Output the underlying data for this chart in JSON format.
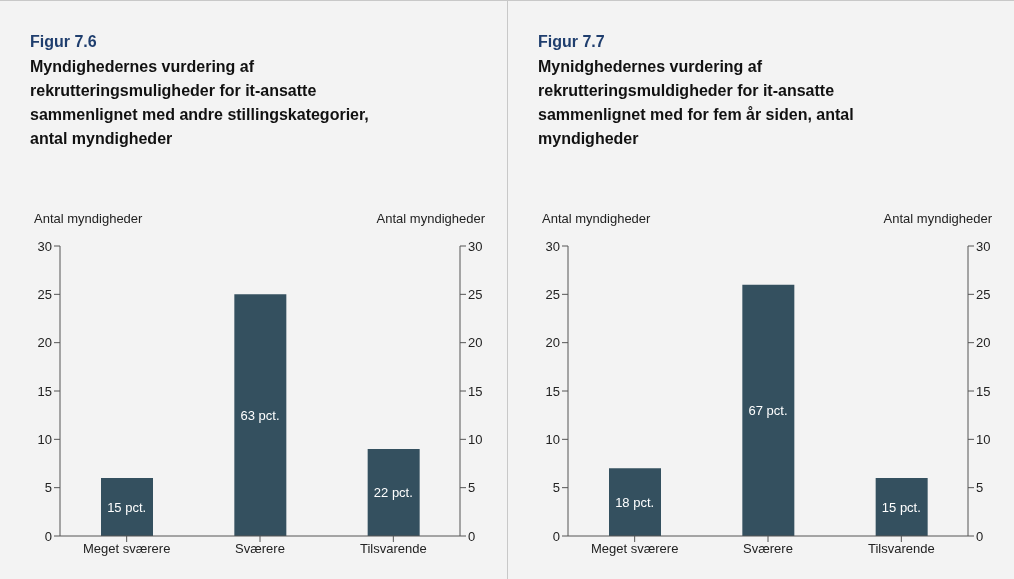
{
  "chart_data": [
    {
      "type": "bar",
      "title": "Figur 7.6",
      "subtitle": "Myndighedernes vurdering af rekrutteringsmuligheder for it-ansatte sammenlignet med andre stillingskategorier, antal myndigheder",
      "ylabel": "Antal myndigheder",
      "y2label": "Antal myndigheder",
      "categories": [
        "Meget sværere",
        "Sværere",
        "Tilsvarende"
      ],
      "values": [
        6,
        25,
        9
      ],
      "color": "#34505f",
      "ylim": [
        0,
        30
      ],
      "yticks": [
        0,
        5,
        10,
        15,
        20,
        25,
        30
      ],
      "y2lim": [
        0,
        30
      ],
      "y2ticks": [
        0,
        5,
        10,
        15,
        20,
        25,
        30
      ],
      "annotations": [
        "15 pct.",
        "63 pct.",
        "22 pct."
      ]
    },
    {
      "type": "bar",
      "title": "Figur 7.7",
      "subtitle": "Mynidghedernes vurdering af rekrutteringsmuldigheder for it-ansatte sammenlignet med for fem år siden, antal myndigheder",
      "ylabel": "Antal myndigheder",
      "y2label": "Antal myndigheder",
      "categories": [
        "Meget sværere",
        "Sværere",
        "Tilsvarende"
      ],
      "values": [
        7,
        26,
        6
      ],
      "color": "#34505f",
      "ylim": [
        0,
        30
      ],
      "yticks": [
        0,
        5,
        10,
        15,
        20,
        25,
        30
      ],
      "y2lim": [
        0,
        30
      ],
      "y2ticks": [
        0,
        5,
        10,
        15,
        20,
        25,
        30
      ],
      "annotations": [
        "18 pct.",
        "67 pct.",
        "15 pct."
      ]
    }
  ]
}
